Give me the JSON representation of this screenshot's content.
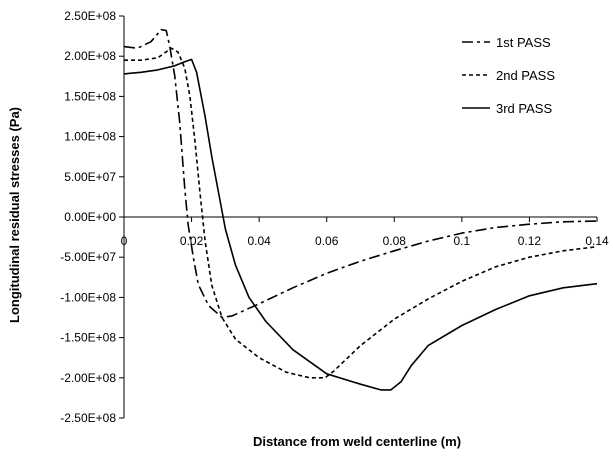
{
  "chart_data": {
    "type": "line",
    "title": "",
    "xlabel": "Distance from weld centerline (m)",
    "ylabel": "Longitudinal residual stresses (Pa)",
    "xlim": [
      0,
      0.14
    ],
    "ylim": [
      -250000000,
      250000000
    ],
    "x_ticks": [
      0,
      0.02,
      0.04,
      0.06,
      0.08,
      0.1,
      0.12,
      0.14
    ],
    "x_tick_labels": [
      "0",
      "0.02",
      "0.04",
      "0.06",
      "0.08",
      "0.1",
      "0.12",
      "0.14"
    ],
    "y_ticks": [
      250000000,
      200000000,
      150000000,
      100000000,
      50000000,
      0,
      -50000000,
      -100000000,
      -150000000,
      -200000000,
      -250000000
    ],
    "y_tick_labels": [
      "2.50E+08",
      "2.00E+08",
      "1.50E+08",
      "1.00E+08",
      "5.00E+07",
      "0.00E+00",
      "-5.00E+07",
      "-1.00E+08",
      "-1.50E+08",
      "-2.00E+08",
      "-2.50E+08"
    ],
    "grid": false,
    "legend_position": "top-right",
    "series": [
      {
        "name": "1st PASS",
        "line_style": "dash-dot",
        "points": [
          [
            0,
            212000000
          ],
          [
            0.004,
            210000000
          ],
          [
            0.008,
            218000000
          ],
          [
            0.011,
            233000000
          ],
          [
            0.0125,
            232000000
          ],
          [
            0.0135,
            213000000
          ],
          [
            0.015,
            176000000
          ],
          [
            0.0165,
            118000000
          ],
          [
            0.018,
            35000000
          ],
          [
            0.019,
            -10000000
          ],
          [
            0.0205,
            -50000000
          ],
          [
            0.022,
            -84000000
          ],
          [
            0.025,
            -110000000
          ],
          [
            0.029,
            -125000000
          ],
          [
            0.032,
            -123000000
          ],
          [
            0.04,
            -108000000
          ],
          [
            0.05,
            -88000000
          ],
          [
            0.06,
            -70000000
          ],
          [
            0.07,
            -55000000
          ],
          [
            0.08,
            -42000000
          ],
          [
            0.09,
            -30000000
          ],
          [
            0.1,
            -20000000
          ],
          [
            0.11,
            -13000000
          ],
          [
            0.12,
            -9000000
          ],
          [
            0.13,
            -6000000
          ],
          [
            0.14,
            -5000000
          ]
        ]
      },
      {
        "name": "2nd PASS",
        "line_style": "dash",
        "points": [
          [
            0,
            195000000
          ],
          [
            0.005,
            195000000
          ],
          [
            0.01,
            198000000
          ],
          [
            0.014,
            210000000
          ],
          [
            0.016,
            205000000
          ],
          [
            0.018,
            185000000
          ],
          [
            0.0195,
            150000000
          ],
          [
            0.021,
            95000000
          ],
          [
            0.0225,
            30000000
          ],
          [
            0.024,
            -30000000
          ],
          [
            0.026,
            -85000000
          ],
          [
            0.029,
            -125000000
          ],
          [
            0.033,
            -152000000
          ],
          [
            0.04,
            -175000000
          ],
          [
            0.048,
            -193000000
          ],
          [
            0.055,
            -200000000
          ],
          [
            0.0595,
            -200000000
          ],
          [
            0.062,
            -192000000
          ],
          [
            0.065,
            -180000000
          ],
          [
            0.07,
            -160000000
          ],
          [
            0.08,
            -127000000
          ],
          [
            0.09,
            -102000000
          ],
          [
            0.1,
            -80000000
          ],
          [
            0.11,
            -62000000
          ],
          [
            0.12,
            -50000000
          ],
          [
            0.13,
            -42000000
          ],
          [
            0.14,
            -37000000
          ]
        ]
      },
      {
        "name": "3rd PASS",
        "line_style": "solid",
        "points": [
          [
            0,
            178000000
          ],
          [
            0.005,
            180000000
          ],
          [
            0.01,
            183000000
          ],
          [
            0.015,
            188000000
          ],
          [
            0.018,
            193000000
          ],
          [
            0.02,
            196000000
          ],
          [
            0.0215,
            180000000
          ],
          [
            0.024,
            125000000
          ],
          [
            0.026,
            75000000
          ],
          [
            0.028,
            30000000
          ],
          [
            0.03,
            -15000000
          ],
          [
            0.033,
            -60000000
          ],
          [
            0.037,
            -100000000
          ],
          [
            0.042,
            -130000000
          ],
          [
            0.05,
            -165000000
          ],
          [
            0.06,
            -195000000
          ],
          [
            0.07,
            -208000000
          ],
          [
            0.076,
            -215000000
          ],
          [
            0.079,
            -215000000
          ],
          [
            0.082,
            -205000000
          ],
          [
            0.085,
            -185000000
          ],
          [
            0.09,
            -160000000
          ],
          [
            0.1,
            -135000000
          ],
          [
            0.11,
            -115000000
          ],
          [
            0.12,
            -98000000
          ],
          [
            0.13,
            -88000000
          ],
          [
            0.14,
            -83000000
          ]
        ]
      }
    ]
  }
}
